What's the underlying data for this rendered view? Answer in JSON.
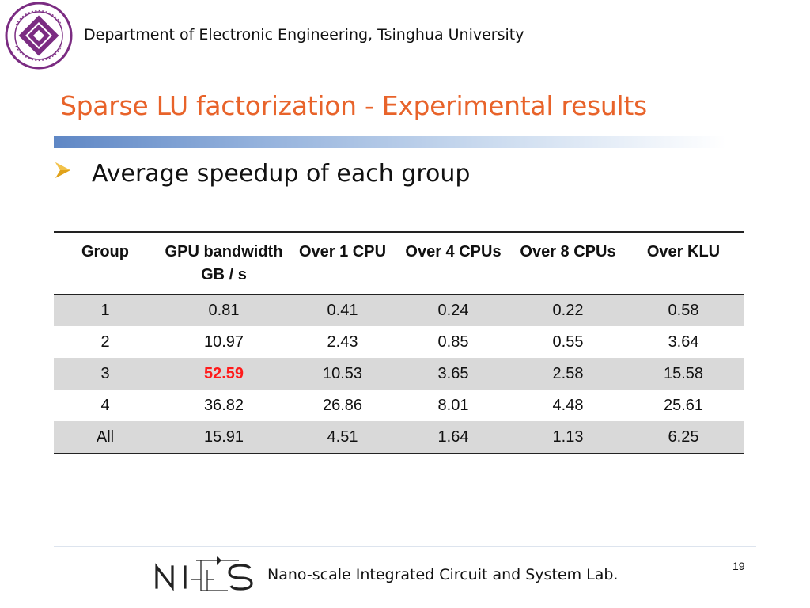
{
  "header": {
    "department": "Department of Electronic Engineering, Tsinghua University"
  },
  "slide": {
    "title": "Sparse LU factorization - Experimental results",
    "bullet": "Average speedup of each group",
    "page_number": "19"
  },
  "table": {
    "headers": [
      "Group",
      "GPU bandwidth GB / s",
      "Over 1 CPU",
      "Over 4 CPUs",
      "Over 8 CPUs",
      "Over KLU"
    ],
    "rows": [
      [
        "1",
        "0.81",
        "0.41",
        "0.24",
        "0.22",
        "0.58"
      ],
      [
        "2",
        "10.97",
        "2.43",
        "0.85",
        "0.55",
        "3.64"
      ],
      [
        "3",
        "52.59",
        "10.53",
        "3.65",
        "2.58",
        "15.58"
      ],
      [
        "4",
        "36.82",
        "26.86",
        "8.01",
        "4.48",
        "25.61"
      ],
      [
        "All",
        "15.91",
        "4.51",
        "1.64",
        "1.13",
        "6.25"
      ]
    ],
    "highlight_color": "#ff1a1a"
  },
  "footer": {
    "lab": "Nano-scale Integrated Circuit and System Lab."
  },
  "colors": {
    "title": "#e8632a",
    "logo_purple": "#7b2c82",
    "title_bar": "#5f87c5",
    "row_shade": "#d9d9d9"
  },
  "icons": {
    "logo": "tsinghua-electronic-emblem",
    "bullet": "arrowhead-bullet-icon",
    "footer_logo": "nics-logo"
  }
}
